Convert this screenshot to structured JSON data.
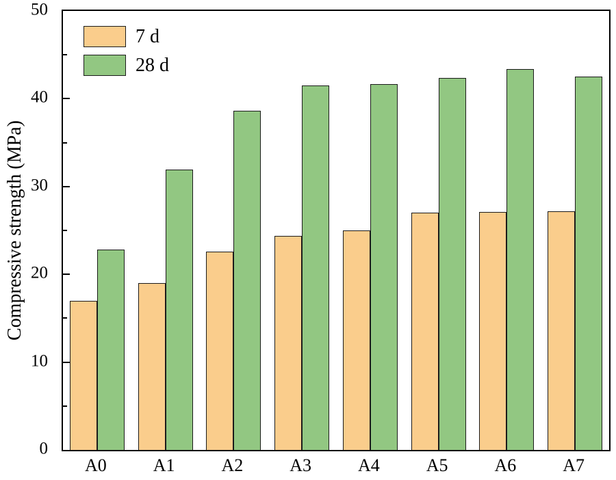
{
  "chart_data": {
    "type": "bar",
    "title": "",
    "xlabel": "",
    "ylabel": "Compressive strength (MPa)",
    "ylim": [
      0,
      50
    ],
    "yticks": [
      0,
      10,
      20,
      30,
      40,
      50
    ],
    "minor_tick_step": 5,
    "grid": false,
    "legend_position": "top-left",
    "categories": [
      "A0",
      "A1",
      "A2",
      "A3",
      "A4",
      "A5",
      "A6",
      "A7"
    ],
    "series": [
      {
        "name": "7 d",
        "color": "#FACD8C",
        "values": [
          17.0,
          19.0,
          22.6,
          24.4,
          25.0,
          27.0,
          27.1,
          27.2
        ]
      },
      {
        "name": "28 d",
        "color": "#92C782",
        "values": [
          22.8,
          31.9,
          38.6,
          41.5,
          41.7,
          42.4,
          43.4,
          42.5
        ]
      }
    ],
    "bar_edge_color": "#1a1a1a"
  }
}
